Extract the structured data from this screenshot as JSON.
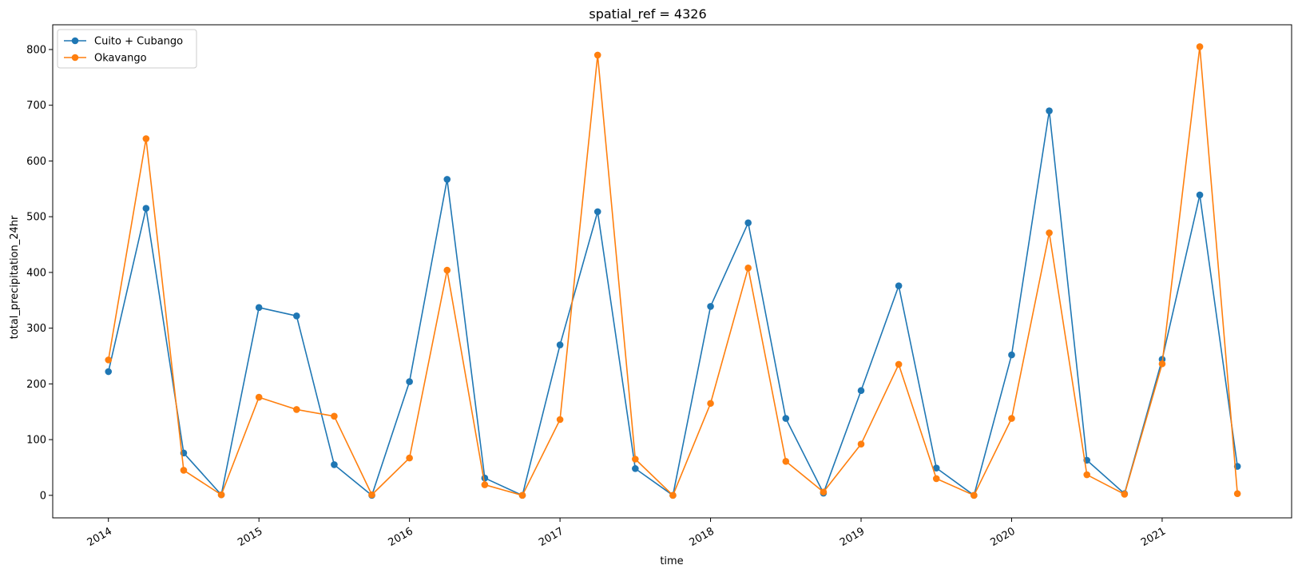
{
  "chart_data": {
    "type": "line",
    "title": "spatial_ref = 4326",
    "xlabel": "time",
    "ylabel": "total_precipitation_24hr",
    "x": [
      "2014-01",
      "2014-04",
      "2014-07",
      "2014-10",
      "2015-01",
      "2015-04",
      "2015-07",
      "2015-10",
      "2016-01",
      "2016-04",
      "2016-07",
      "2016-10",
      "2017-01",
      "2017-04",
      "2017-07",
      "2017-10",
      "2018-01",
      "2018-04",
      "2018-07",
      "2018-10",
      "2019-01",
      "2019-04",
      "2019-07",
      "2019-10",
      "2020-01",
      "2020-04",
      "2020-07",
      "2020-10",
      "2021-01",
      "2021-04",
      "2021-07"
    ],
    "x_numeric": [
      2014.0,
      2014.25,
      2014.5,
      2014.75,
      2015.0,
      2015.25,
      2015.5,
      2015.75,
      2016.0,
      2016.25,
      2016.5,
      2016.75,
      2017.0,
      2017.25,
      2017.5,
      2017.75,
      2018.0,
      2018.25,
      2018.5,
      2018.75,
      2019.0,
      2019.25,
      2019.5,
      2019.75,
      2020.0,
      2020.25,
      2020.5,
      2020.75,
      2021.0,
      2021.25,
      2021.5
    ],
    "series": [
      {
        "name": "Cuito + Cubango",
        "color": "#1f77b4",
        "values": [
          222,
          515,
          76,
          1,
          337,
          322,
          55,
          0,
          204,
          567,
          31,
          0,
          270,
          509,
          48,
          0,
          339,
          489,
          138,
          4,
          188,
          376,
          49,
          0,
          252,
          690,
          63,
          3,
          244,
          539,
          52
        ]
      },
      {
        "name": "Okavango",
        "color": "#ff7f0e",
        "values": [
          243,
          640,
          45,
          1,
          176,
          154,
          142,
          1,
          67,
          404,
          19,
          0,
          136,
          790,
          65,
          0,
          165,
          408,
          61,
          6,
          92,
          235,
          30,
          0,
          138,
          471,
          37,
          2,
          236,
          805,
          3
        ]
      }
    ],
    "xticks": [
      {
        "value": 2014.0,
        "label": "2014"
      },
      {
        "value": 2015.0,
        "label": "2015"
      },
      {
        "value": 2016.0,
        "label": "2016"
      },
      {
        "value": 2017.0,
        "label": "2017"
      },
      {
        "value": 2018.0,
        "label": "2018"
      },
      {
        "value": 2019.0,
        "label": "2019"
      },
      {
        "value": 2020.0,
        "label": "2020"
      },
      {
        "value": 2021.0,
        "label": "2021"
      }
    ],
    "yticks": [
      0,
      100,
      200,
      300,
      400,
      500,
      600,
      700,
      800
    ],
    "xlim": [
      2013.63,
      2021.86
    ],
    "ylim": [
      -40.4,
      844.4
    ],
    "grid": false,
    "legend": "top-left"
  }
}
